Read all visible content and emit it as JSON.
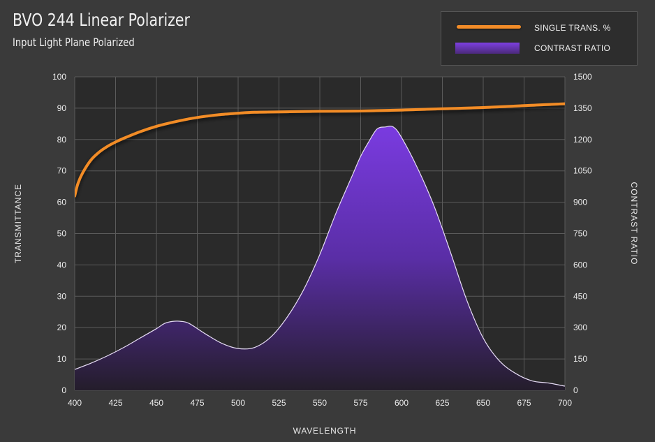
{
  "chart_data": {
    "type": "line+area",
    "title": "BVO 244 Linear Polarizer",
    "subtitle": "Input Light Plane Polarized",
    "xlabel": "WAVELENGTH",
    "ylabel_left": "TRANSMITTANCE",
    "ylabel_right": "CONTRAST RATIO",
    "xlim": [
      400,
      700
    ],
    "ylim_left": [
      0,
      100
    ],
    "ylim_right": [
      0,
      1500
    ],
    "x_ticks": [
      400,
      425,
      450,
      475,
      500,
      525,
      550,
      575,
      600,
      625,
      650,
      675,
      700
    ],
    "y_ticks_left": [
      0,
      10,
      20,
      30,
      40,
      50,
      60,
      70,
      80,
      90,
      100
    ],
    "y_ticks_right": [
      0,
      150,
      300,
      450,
      600,
      750,
      900,
      1050,
      1200,
      1350,
      1500
    ],
    "grid": true,
    "legend_position": "top-right",
    "colors": {
      "transmission": "#f28c28",
      "contrast_top": "#7d3fe0",
      "contrast_bottom": "#241d2b",
      "background": "#3a3a3a",
      "plot": "#2a2a2a"
    },
    "series": [
      {
        "name": "SINGLE TRANS. %",
        "axis": "left",
        "type": "line",
        "x": [
          400,
          402,
          405,
          410,
          415,
          420,
          425,
          430,
          440,
          450,
          460,
          470,
          480,
          490,
          500,
          510,
          525,
          550,
          575,
          600,
          625,
          650,
          675,
          700
        ],
        "values": [
          62,
          66,
          69.5,
          73.5,
          76,
          77.8,
          79.2,
          80.4,
          82.5,
          84.2,
          85.5,
          86.6,
          87.4,
          88,
          88.4,
          88.7,
          88.8,
          89,
          89.1,
          89.4,
          89.8,
          90.2,
          90.8,
          91.4
        ]
      },
      {
        "name": "CONTRAST RATIO",
        "axis": "right",
        "type": "area",
        "x": [
          400,
          410,
          420,
          430,
          440,
          450,
          455,
          460,
          465,
          470,
          480,
          490,
          500,
          510,
          520,
          530,
          540,
          550,
          560,
          570,
          575,
          580,
          585,
          590,
          595,
          600,
          610,
          620,
          630,
          640,
          650,
          660,
          670,
          680,
          690,
          700
        ],
        "values": [
          100,
          130,
          165,
          205,
          250,
          295,
          320,
          330,
          330,
          320,
          270,
          225,
          200,
          205,
          255,
          350,
          480,
          650,
          850,
          1030,
          1120,
          1190,
          1250,
          1260,
          1260,
          1210,
          1060,
          880,
          660,
          430,
          250,
          140,
          80,
          45,
          35,
          20
        ]
      }
    ]
  },
  "legend": [
    {
      "label": "SINGLE TRANS. %"
    },
    {
      "label": "CONTRAST RATIO"
    }
  ]
}
